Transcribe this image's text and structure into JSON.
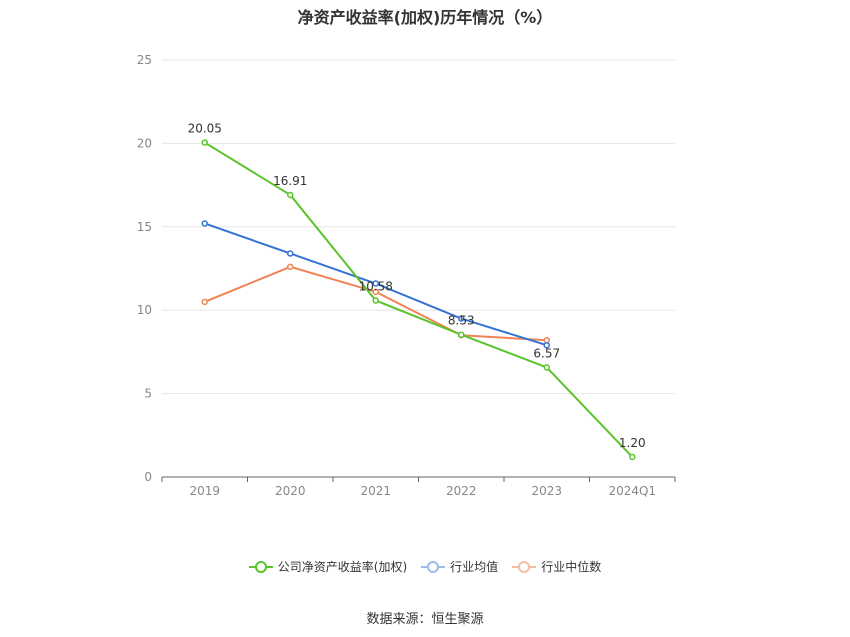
{
  "title": "净资产收益率(加权)历年情况（%）",
  "source": "数据来源：恒生聚源",
  "chart_data": {
    "type": "line",
    "categories": [
      "2019",
      "2020",
      "2021",
      "2022",
      "2023",
      "2024Q1"
    ],
    "ylim": [
      0,
      25
    ],
    "yticks": [
      "0",
      "5",
      "10",
      "15",
      "20",
      "25"
    ],
    "grid": true,
    "legend_position": "bottom",
    "series": [
      {
        "name": "公司净资产收益率(加权)",
        "color": "#5ac42b",
        "values": [
          20.05,
          16.91,
          10.58,
          8.53,
          6.57,
          1.2
        ],
        "labels": [
          "20.05",
          "16.91",
          "10.58",
          "8.53",
          "6.57",
          "1.20"
        ]
      },
      {
        "name": "行业均值",
        "color": "#3572d3",
        "values": [
          15.2,
          13.4,
          11.6,
          9.5,
          7.9,
          null
        ]
      },
      {
        "name": "行业中位数",
        "color": "#ef8355",
        "values": [
          10.5,
          12.6,
          11.1,
          8.5,
          8.2,
          null
        ]
      }
    ]
  }
}
